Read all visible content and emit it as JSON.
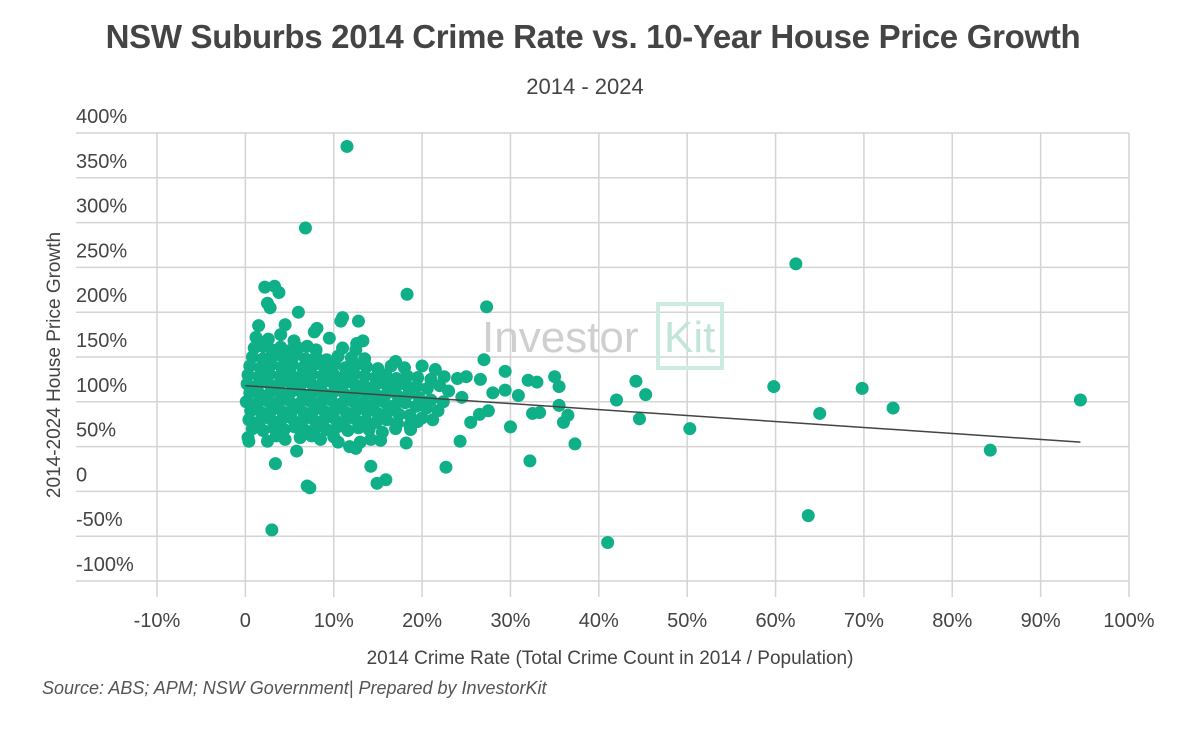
{
  "chart_data": {
    "type": "scatter",
    "title": "NSW Suburbs 2014 Crime Rate vs. 10-Year House Price Growth",
    "subtitle": "2014 - 2024",
    "xlabel": "2014 Crime Rate (Total Crime Count in 2014 / Population)",
    "ylabel": "2014-2024 House Price Growth",
    "xlim": [
      -10,
      100
    ],
    "ylim": [
      -100,
      400
    ],
    "x_ticks": [
      "-10%",
      "0",
      "10%",
      "20%",
      "30%",
      "40%",
      "50%",
      "60%",
      "70%",
      "80%",
      "90%",
      "100%"
    ],
    "x_tick_values": [
      -10,
      0,
      10,
      20,
      30,
      40,
      50,
      60,
      70,
      80,
      90,
      100
    ],
    "y_ticks": [
      "400%",
      "350%",
      "300%",
      "250%",
      "200%",
      "150%",
      "100%",
      "50%",
      "0",
      "-50%",
      "-100%"
    ],
    "y_tick_values": [
      400,
      350,
      300,
      250,
      200,
      150,
      100,
      50,
      0,
      -50,
      -100
    ],
    "grid": true,
    "point_color": "#0FAF87",
    "trendline": {
      "color": "#444444",
      "from": [
        0,
        118
      ],
      "to": [
        94.5,
        55
      ]
    },
    "watermark": "InvestorKit",
    "points": [
      [
        11.5,
        385
      ],
      [
        6.8,
        294
      ],
      [
        62.3,
        254
      ],
      [
        2.2,
        228
      ],
      [
        3.3,
        229
      ],
      [
        3.8,
        222
      ],
      [
        18.3,
        220
      ],
      [
        27.3,
        206
      ],
      [
        11,
        194
      ],
      [
        12.8,
        190
      ],
      [
        6,
        200
      ],
      [
        41,
        -57
      ],
      [
        63.7,
        -27
      ],
      [
        3,
        -43
      ],
      [
        84.3,
        46
      ],
      [
        94.5,
        102
      ],
      [
        59.8,
        117
      ],
      [
        69.8,
        115
      ],
      [
        73.3,
        93
      ],
      [
        65,
        87
      ],
      [
        50.3,
        70
      ],
      [
        44.2,
        123
      ],
      [
        45.3,
        108
      ],
      [
        44.6,
        81
      ],
      [
        42,
        102
      ],
      [
        35,
        128
      ],
      [
        35.5,
        117
      ],
      [
        37.3,
        53
      ],
      [
        32.2,
        34
      ],
      [
        22.7,
        27
      ],
      [
        14.2,
        28
      ],
      [
        15.9,
        13
      ],
      [
        14.9,
        9
      ],
      [
        7,
        6
      ],
      [
        7.3,
        4
      ],
      [
        3.4,
        31
      ],
      [
        36.5,
        85
      ],
      [
        36,
        77
      ],
      [
        32.5,
        87
      ],
      [
        33.3,
        88
      ],
      [
        29.4,
        134
      ],
      [
        27,
        147
      ],
      [
        33,
        122
      ],
      [
        32,
        124
      ],
      [
        30.9,
        107
      ],
      [
        28,
        110
      ],
      [
        30,
        72
      ],
      [
        29.4,
        113
      ],
      [
        24.3,
        56
      ],
      [
        25.5,
        77
      ],
      [
        35.5,
        96
      ],
      [
        26.5,
        86
      ],
      [
        27.5,
        90
      ],
      [
        1.5,
        185
      ],
      [
        4.5,
        186
      ],
      [
        2.8,
        205
      ],
      [
        2.5,
        210
      ],
      [
        8.1,
        182
      ],
      [
        10.8,
        190
      ],
      [
        1.2,
        172
      ],
      [
        2.6,
        170
      ],
      [
        4,
        175
      ],
      [
        5.5,
        168
      ],
      [
        7.8,
        178
      ],
      [
        9.5,
        171
      ],
      [
        13.3,
        168
      ],
      [
        12.6,
        165
      ],
      [
        1,
        160
      ],
      [
        2,
        162
      ],
      [
        3,
        158
      ],
      [
        4,
        161
      ],
      [
        5,
        157
      ],
      [
        6,
        160
      ],
      [
        7,
        162
      ],
      [
        8,
        158
      ],
      [
        11,
        160
      ],
      [
        12.5,
        158
      ],
      [
        0.8,
        150
      ],
      [
        2,
        148
      ],
      [
        3.2,
        151
      ],
      [
        4.4,
        149
      ],
      [
        5.6,
        152
      ],
      [
        6.8,
        148
      ],
      [
        8,
        150
      ],
      [
        9.2,
        147
      ],
      [
        10.5,
        151
      ],
      [
        12,
        149
      ],
      [
        13.5,
        148
      ],
      [
        17,
        145
      ],
      [
        0.5,
        140
      ],
      [
        1.7,
        138
      ],
      [
        2.9,
        141
      ],
      [
        4.1,
        139
      ],
      [
        5.3,
        142
      ],
      [
        6.5,
        138
      ],
      [
        7.7,
        141
      ],
      [
        8.9,
        139
      ],
      [
        10.1,
        142
      ],
      [
        11.3,
        138
      ],
      [
        12.5,
        141
      ],
      [
        13.7,
        139
      ],
      [
        15,
        137
      ],
      [
        16.5,
        140
      ],
      [
        18,
        138
      ],
      [
        20,
        140
      ],
      [
        21.5,
        136
      ],
      [
        26.6,
        125
      ],
      [
        0.3,
        130
      ],
      [
        1.5,
        128
      ],
      [
        2.7,
        131
      ],
      [
        3.9,
        129
      ],
      [
        5.1,
        132
      ],
      [
        6.3,
        128
      ],
      [
        7.5,
        131
      ],
      [
        8.7,
        129
      ],
      [
        9.9,
        132
      ],
      [
        11.1,
        128
      ],
      [
        12.3,
        131
      ],
      [
        13.5,
        129
      ],
      [
        14.7,
        127
      ],
      [
        15.9,
        130
      ],
      [
        17.1,
        126
      ],
      [
        18.3,
        129
      ],
      [
        19.5,
        127
      ],
      [
        21,
        125
      ],
      [
        22.5,
        128
      ],
      [
        24,
        126
      ],
      [
        25,
        128
      ],
      [
        0.2,
        120
      ],
      [
        1.4,
        118
      ],
      [
        2.6,
        121
      ],
      [
        3.8,
        119
      ],
      [
        5,
        122
      ],
      [
        6.2,
        118
      ],
      [
        7.4,
        121
      ],
      [
        8.6,
        119
      ],
      [
        9.8,
        122
      ],
      [
        11,
        118
      ],
      [
        12.2,
        121
      ],
      [
        13.4,
        119
      ],
      [
        14.6,
        117
      ],
      [
        15.8,
        120
      ],
      [
        17,
        116
      ],
      [
        18.2,
        119
      ],
      [
        19.4,
        117
      ],
      [
        20.6,
        115
      ],
      [
        22,
        118
      ],
      [
        23,
        112
      ],
      [
        24.5,
        105
      ],
      [
        0.5,
        110
      ],
      [
        1.7,
        108
      ],
      [
        2.9,
        111
      ],
      [
        4.1,
        109
      ],
      [
        5.3,
        112
      ],
      [
        6.5,
        108
      ],
      [
        7.7,
        111
      ],
      [
        8.9,
        109
      ],
      [
        10.1,
        112
      ],
      [
        11.3,
        108
      ],
      [
        12.5,
        111
      ],
      [
        13.7,
        109
      ],
      [
        14.9,
        107
      ],
      [
        16.1,
        110
      ],
      [
        17.3,
        106
      ],
      [
        18.5,
        109
      ],
      [
        19.7,
        104
      ],
      [
        21,
        102
      ],
      [
        22.4,
        100
      ],
      [
        0.1,
        100
      ],
      [
        1.3,
        98
      ],
      [
        2.5,
        101
      ],
      [
        3.7,
        99
      ],
      [
        4.9,
        102
      ],
      [
        6.1,
        98
      ],
      [
        7.3,
        101
      ],
      [
        8.5,
        99
      ],
      [
        9.7,
        102
      ],
      [
        10.9,
        98
      ],
      [
        12.1,
        101
      ],
      [
        13.3,
        99
      ],
      [
        14.5,
        97
      ],
      [
        15.7,
        100
      ],
      [
        16.9,
        96
      ],
      [
        18.1,
        99
      ],
      [
        19.3,
        95
      ],
      [
        20.5,
        93
      ],
      [
        21.8,
        90
      ],
      [
        0.6,
        90
      ],
      [
        1.8,
        88
      ],
      [
        3,
        91
      ],
      [
        4.2,
        89
      ],
      [
        5.4,
        92
      ],
      [
        6.6,
        88
      ],
      [
        7.8,
        91
      ],
      [
        9,
        89
      ],
      [
        10.2,
        92
      ],
      [
        11.4,
        88
      ],
      [
        12.6,
        91
      ],
      [
        13.8,
        89
      ],
      [
        15,
        87
      ],
      [
        16.2,
        90
      ],
      [
        17.4,
        86
      ],
      [
        18.6,
        85
      ],
      [
        20,
        82
      ],
      [
        21.2,
        80
      ],
      [
        0.4,
        80
      ],
      [
        1.6,
        78
      ],
      [
        2.8,
        81
      ],
      [
        4,
        79
      ],
      [
        5.2,
        82
      ],
      [
        6.4,
        78
      ],
      [
        7.6,
        81
      ],
      [
        8.8,
        79
      ],
      [
        10,
        82
      ],
      [
        11.2,
        78
      ],
      [
        12.4,
        81
      ],
      [
        13.6,
        79
      ],
      [
        14.8,
        77
      ],
      [
        16,
        80
      ],
      [
        17.2,
        76
      ],
      [
        18.6,
        74
      ],
      [
        19.5,
        78
      ],
      [
        0.8,
        70
      ],
      [
        2,
        68
      ],
      [
        3.2,
        71
      ],
      [
        4.4,
        69
      ],
      [
        5.6,
        72
      ],
      [
        6.8,
        68
      ],
      [
        8,
        71
      ],
      [
        9.2,
        69
      ],
      [
        10.4,
        72
      ],
      [
        11.6,
        68
      ],
      [
        12.8,
        71
      ],
      [
        14,
        69
      ],
      [
        15.5,
        66
      ],
      [
        17,
        70
      ],
      [
        18.7,
        69
      ],
      [
        0.3,
        60
      ],
      [
        0.4,
        56
      ],
      [
        2.5,
        56
      ],
      [
        3.5,
        62
      ],
      [
        4.5,
        58
      ],
      [
        6.2,
        60
      ],
      [
        7.5,
        62
      ],
      [
        8.5,
        58
      ],
      [
        10,
        61
      ],
      [
        10.5,
        55
      ],
      [
        11.8,
        50
      ],
      [
        12.5,
        48
      ],
      [
        13,
        55
      ],
      [
        14.2,
        58
      ],
      [
        15.3,
        57
      ],
      [
        18.2,
        54
      ],
      [
        5.8,
        45
      ]
    ]
  },
  "source": "Source: ABS; APM; NSW Government| Prepared by InvestorKit"
}
